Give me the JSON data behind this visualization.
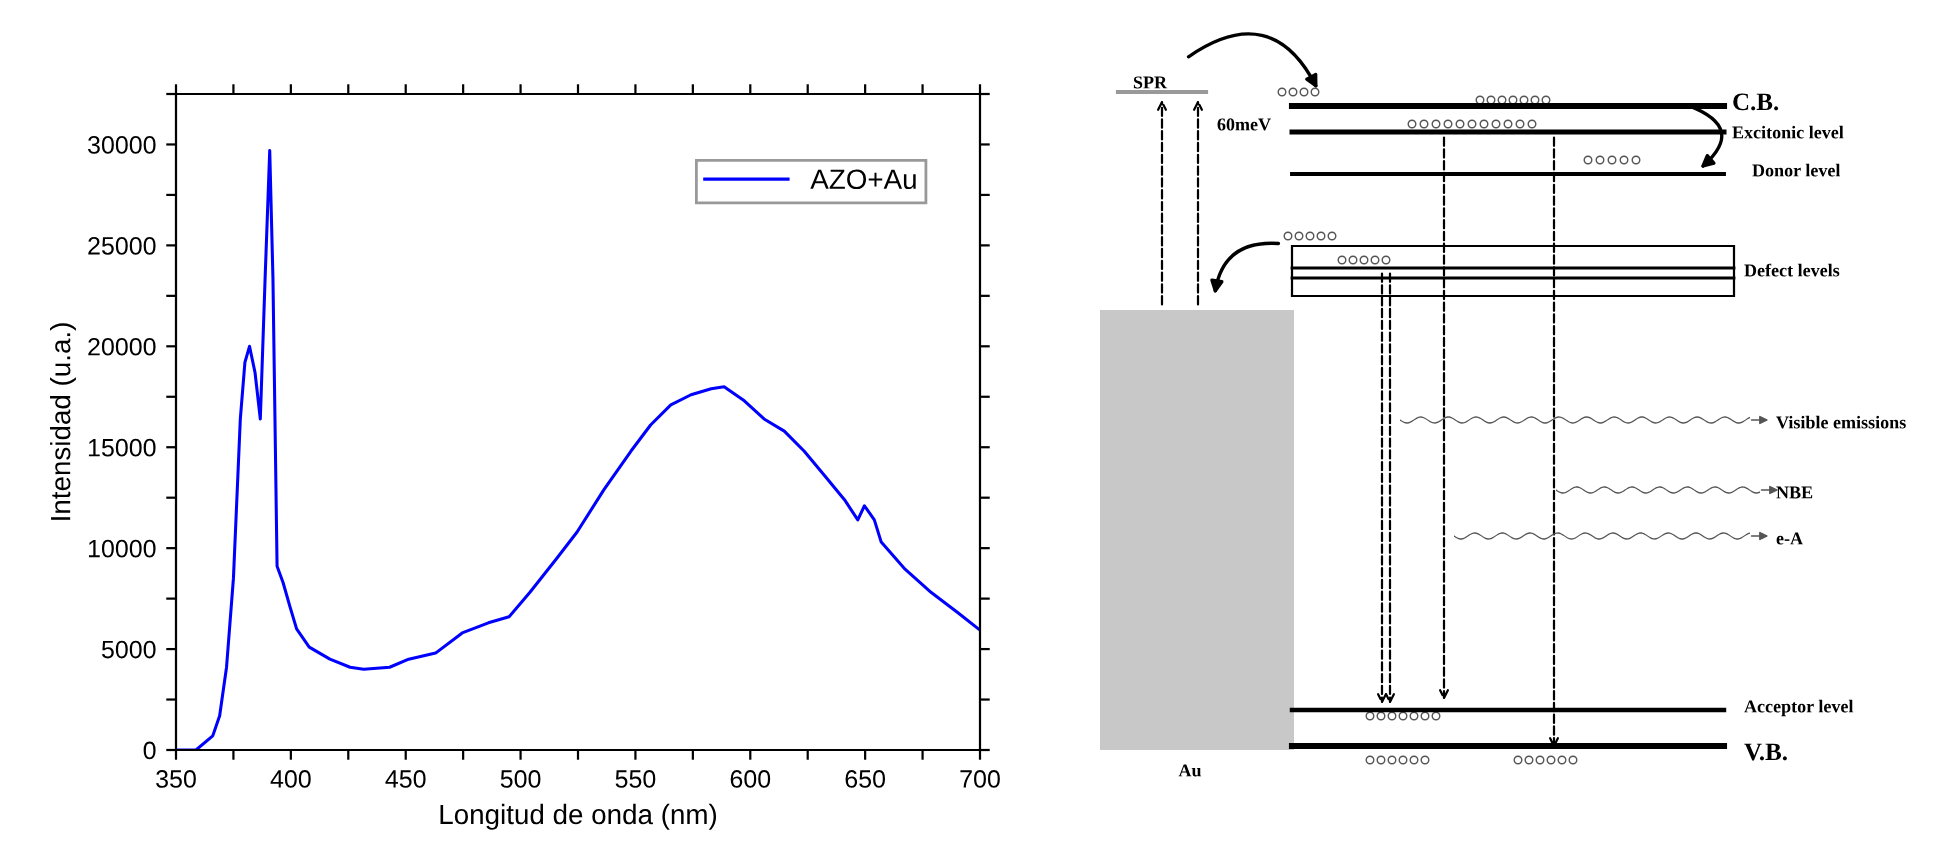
{
  "chart_data": [
    {
      "type": "line",
      "xlabel": "Longitud de onda (nm)",
      "ylabel": "Intensidad (u.a.)",
      "legend": "top right",
      "grid": false,
      "xlim": [
        350,
        700
      ],
      "xticks": [
        350,
        {
          "value": 375,
          "label": null
        },
        400,
        {
          "value": 425,
          "label": null
        },
        450,
        {
          "value": 475,
          "label": null
        },
        500,
        {
          "value": 525,
          "label": null
        },
        550,
        {
          "value": 575,
          "label": null
        },
        600,
        {
          "value": 625,
          "label": null
        },
        650,
        {
          "value": 675,
          "label": null
        },
        700
      ],
      "ylim": [
        0,
        32500
      ],
      "yticks": [
        0,
        {
          "value": 2500,
          "label": null
        },
        5000,
        {
          "value": 7500,
          "label": null
        },
        10000,
        {
          "value": 12500,
          "label": null
        },
        15000,
        {
          "value": 17500,
          "label": null
        },
        20000,
        {
          "value": 22500,
          "label": null
        },
        25000,
        {
          "value": 27500,
          "label": null
        },
        30000,
        {
          "value": 32500,
          "label": null
        }
      ],
      "series": [
        {
          "name": "AZO+Au",
          "color": "#0000ff",
          "x": [
            350,
            358.7,
            366,
            369,
            372,
            375,
            378,
            380,
            382,
            384.4,
            386.7,
            388.8,
            390.8,
            392.2,
            394,
            396.6,
            399.6,
            402.5,
            408,
            417,
            425.8,
            431.7,
            443,
            451.3,
            463,
            474.6,
            486,
            495,
            504,
            515.8,
            524.6,
            536.3,
            548,
            556.6,
            565.4,
            574.2,
            583,
            588.6,
            597.4,
            606,
            614.8,
            623.5,
            632.3,
            641,
            646.8,
            649.7,
            654,
            657,
            667,
            678.8,
            690.4,
            699.3
          ],
          "values": [
            0,
            0,
            700,
            1700,
            4100,
            8500,
            16400,
            19200,
            20000,
            18700,
            16400,
            23400,
            29700,
            23400,
            9100,
            8300,
            7100,
            6000,
            5100,
            4500,
            4100,
            4000,
            4100,
            4500,
            4800,
            5800,
            6300,
            6600,
            7800,
            9500,
            10800,
            12900,
            14800,
            16100,
            17100,
            17600,
            17900,
            18000,
            17300,
            16400,
            15800,
            14800,
            13600,
            12400,
            11400,
            12100,
            11400,
            10300,
            9000,
            7800,
            6800,
            6000
          ]
        }
      ]
    },
    {
      "type": "other",
      "annotations": [
        "SPR",
        "60meV",
        "C.B.",
        "Excitonic level",
        "Donor level",
        "Defect levels",
        "Visible emissions",
        "NBE",
        "e-A",
        "Acceptor level",
        "V.B.",
        "Au"
      ]
    }
  ]
}
